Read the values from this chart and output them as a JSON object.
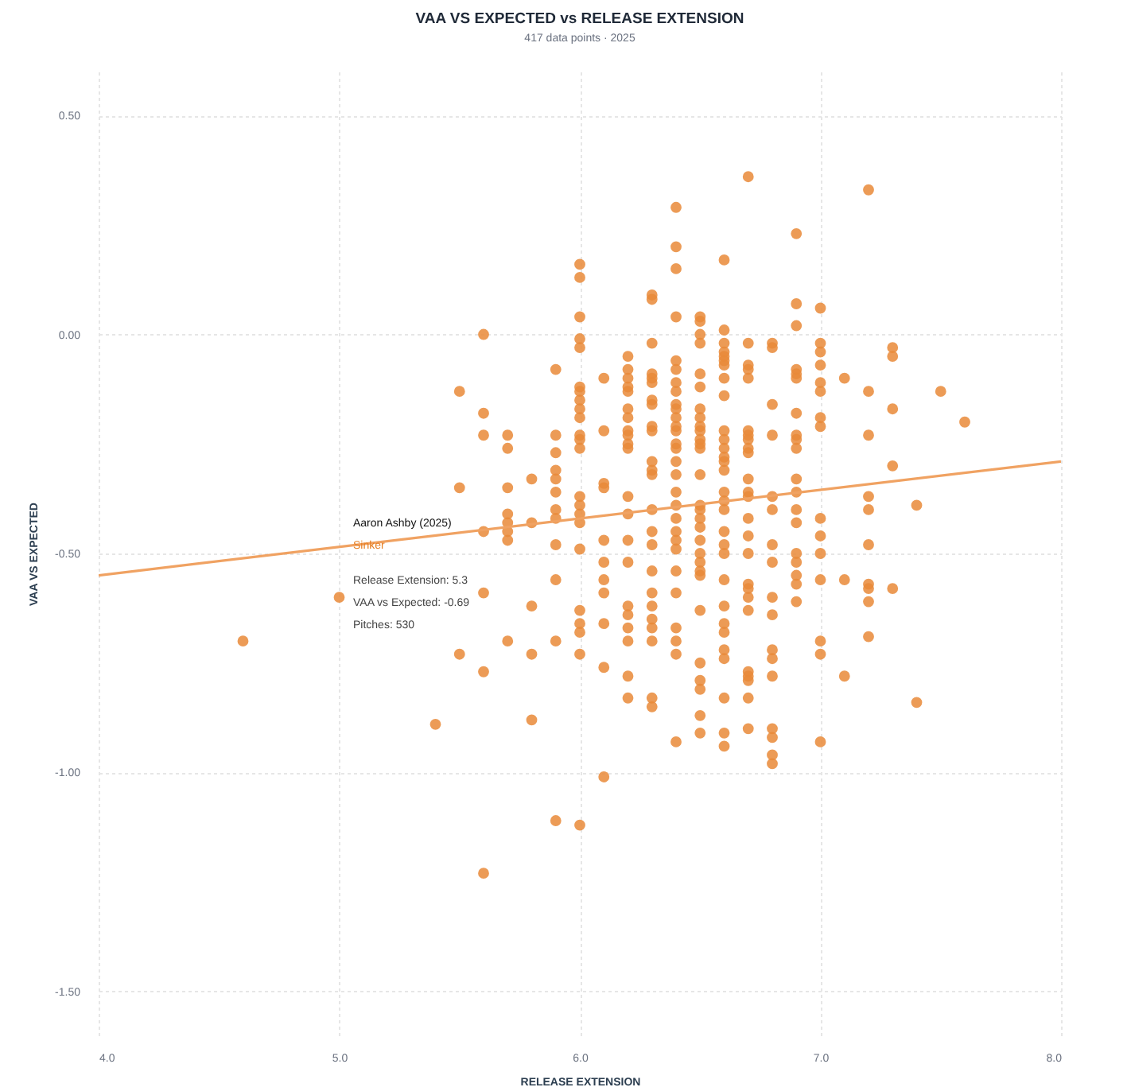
{
  "chart_data": {
    "type": "scatter",
    "title": "VAA VS EXPECTED vs RELEASE EXTENSION",
    "subtitle": "417 data points · 2025",
    "xlabel": "RELEASE EXTENSION",
    "ylabel": "VAA VS EXPECTED",
    "xlim": [
      4,
      8
    ],
    "ylim": [
      -1.6,
      0.6
    ],
    "xticks": [
      {
        "value": 4,
        "label": "4.0"
      },
      {
        "value": 5,
        "label": "5.0"
      },
      {
        "value": 6,
        "label": "6.0"
      },
      {
        "value": 7,
        "label": "7.0"
      },
      {
        "value": 8,
        "label": "8.0"
      }
    ],
    "yticks": [
      {
        "value": -1.5,
        "label": "-1.50"
      },
      {
        "value": -1,
        "label": "-1.00"
      },
      {
        "value": -0.5,
        "label": "-0.50"
      },
      {
        "value": 0,
        "label": "0.00"
      },
      {
        "value": 0.5,
        "label": "0.50"
      }
    ],
    "grid": true,
    "annotations": [
      "Aaron Ashby (2025)",
      "Sinker",
      "Release Extension: 5.3",
      "VAA vs Expected: -0.69",
      "Pitches: 530"
    ],
    "series": [
      {
        "marker": "circle",
        "color": "#e98a38",
        "x": [
          4.6,
          5.0,
          5.4,
          5.5,
          5.5,
          5.5,
          5.6,
          5.6,
          5.6,
          5.6,
          5.6,
          5.6,
          5.6,
          5.7,
          5.7,
          5.7,
          5.7,
          5.7,
          5.7,
          5.7,
          5.7,
          5.8,
          5.8,
          5.8,
          5.8,
          5.8,
          5.9,
          5.9,
          5.9,
          5.9,
          5.9,
          5.9,
          5.9,
          5.9,
          5.9,
          5.9,
          5.9,
          5.9,
          6.0,
          6.0,
          6.0,
          6.0,
          6.0,
          6.0,
          6.0,
          6.0,
          6.0,
          6.0,
          6.0,
          6.0,
          6.0,
          6.0,
          6.0,
          6.0,
          6.0,
          6.0,
          6.0,
          6.0,
          6.0,
          6.0,
          6.0,
          6.1,
          6.1,
          6.1,
          6.1,
          6.1,
          6.1,
          6.1,
          6.1,
          6.1,
          6.1,
          6.1,
          6.2,
          6.2,
          6.2,
          6.2,
          6.2,
          6.2,
          6.2,
          6.2,
          6.2,
          6.2,
          6.2,
          6.2,
          6.2,
          6.2,
          6.2,
          6.2,
          6.2,
          6.2,
          6.2,
          6.2,
          6.2,
          6.3,
          6.3,
          6.3,
          6.3,
          6.3,
          6.3,
          6.3,
          6.3,
          6.3,
          6.3,
          6.3,
          6.3,
          6.3,
          6.3,
          6.3,
          6.3,
          6.3,
          6.3,
          6.3,
          6.3,
          6.3,
          6.3,
          6.3,
          6.3,
          6.4,
          6.4,
          6.4,
          6.4,
          6.4,
          6.4,
          6.4,
          6.4,
          6.4,
          6.4,
          6.4,
          6.4,
          6.4,
          6.4,
          6.4,
          6.4,
          6.4,
          6.4,
          6.4,
          6.4,
          6.4,
          6.4,
          6.4,
          6.4,
          6.4,
          6.4,
          6.4,
          6.4,
          6.4,
          6.5,
          6.5,
          6.5,
          6.5,
          6.5,
          6.5,
          6.5,
          6.5,
          6.5,
          6.5,
          6.5,
          6.5,
          6.5,
          6.5,
          6.5,
          6.5,
          6.5,
          6.5,
          6.5,
          6.5,
          6.5,
          6.5,
          6.5,
          6.5,
          6.5,
          6.5,
          6.5,
          6.5,
          6.5,
          6.6,
          6.6,
          6.6,
          6.6,
          6.6,
          6.6,
          6.6,
          6.6,
          6.6,
          6.6,
          6.6,
          6.6,
          6.6,
          6.6,
          6.6,
          6.6,
          6.6,
          6.6,
          6.6,
          6.6,
          6.6,
          6.6,
          6.6,
          6.6,
          6.6,
          6.6,
          6.6,
          6.6,
          6.6,
          6.6,
          6.7,
          6.7,
          6.7,
          6.7,
          6.7,
          6.7,
          6.7,
          6.7,
          6.7,
          6.7,
          6.7,
          6.7,
          6.7,
          6.7,
          6.7,
          6.7,
          6.7,
          6.7,
          6.7,
          6.7,
          6.7,
          6.7,
          6.7,
          6.7,
          6.7,
          6.8,
          6.8,
          6.8,
          6.8,
          6.8,
          6.8,
          6.8,
          6.8,
          6.8,
          6.8,
          6.8,
          6.8,
          6.8,
          6.8,
          6.8,
          6.8,
          6.8,
          6.9,
          6.9,
          6.9,
          6.9,
          6.9,
          6.9,
          6.9,
          6.9,
          6.9,
          6.9,
          6.9,
          6.9,
          6.9,
          6.9,
          6.9,
          6.9,
          6.9,
          6.9,
          6.9,
          7.0,
          7.0,
          7.0,
          7.0,
          7.0,
          7.0,
          7.0,
          7.0,
          7.0,
          7.0,
          7.0,
          7.0,
          7.0,
          7.0,
          7.0,
          7.1,
          7.1,
          7.1,
          7.2,
          7.2,
          7.2,
          7.2,
          7.2,
          7.2,
          7.2,
          7.2,
          7.2,
          7.2,
          7.3,
          7.3,
          7.3,
          7.3,
          7.3,
          7.4,
          7.4,
          7.5,
          7.6
        ],
        "values": [
          -0.7,
          -0.6,
          -0.89,
          -0.13,
          -0.35,
          -0.73,
          0.0,
          -0.18,
          -0.23,
          -0.45,
          -0.59,
          -0.77,
          -1.23,
          -0.23,
          -0.26,
          -0.35,
          -0.41,
          -0.43,
          -0.45,
          -0.47,
          -0.7,
          -0.33,
          -0.43,
          -0.62,
          -0.73,
          -0.88,
          -0.08,
          -0.23,
          -0.27,
          -0.31,
          -0.33,
          -0.36,
          -0.4,
          -0.42,
          -0.48,
          -0.56,
          -0.7,
          -1.11,
          0.16,
          0.13,
          0.04,
          -0.01,
          -0.03,
          -0.12,
          -0.13,
          -0.15,
          -0.17,
          -0.19,
          -0.23,
          -0.24,
          -0.26,
          -0.37,
          -0.39,
          -0.41,
          -0.43,
          -0.49,
          -0.63,
          -0.66,
          -0.68,
          -0.73,
          -1.12,
          -0.1,
          -0.22,
          -0.34,
          -0.35,
          -0.47,
          -0.52,
          -0.56,
          -0.59,
          -0.66,
          -0.76,
          -1.01,
          -0.05,
          -0.08,
          -0.1,
          -0.12,
          -0.13,
          -0.17,
          -0.19,
          -0.22,
          -0.23,
          -0.25,
          -0.26,
          -0.37,
          -0.41,
          -0.47,
          -0.52,
          -0.62,
          -0.64,
          -0.67,
          -0.7,
          -0.78,
          -0.83,
          0.09,
          0.08,
          -0.02,
          -0.09,
          -0.1,
          -0.11,
          -0.15,
          -0.16,
          -0.21,
          -0.22,
          -0.29,
          -0.31,
          -0.32,
          -0.4,
          -0.45,
          -0.48,
          -0.54,
          -0.59,
          -0.62,
          -0.65,
          -0.67,
          -0.7,
          -0.83,
          -0.85,
          0.29,
          0.2,
          0.15,
          0.04,
          -0.06,
          -0.08,
          -0.11,
          -0.13,
          -0.16,
          -0.17,
          -0.19,
          -0.21,
          -0.22,
          -0.25,
          -0.26,
          -0.29,
          -0.32,
          -0.36,
          -0.39,
          -0.42,
          -0.45,
          -0.47,
          -0.49,
          -0.54,
          -0.59,
          -0.67,
          -0.7,
          -0.73,
          -0.93,
          0.04,
          0.03,
          0.0,
          -0.02,
          -0.09,
          -0.12,
          -0.17,
          -0.19,
          -0.21,
          -0.22,
          -0.24,
          -0.25,
          -0.26,
          -0.32,
          -0.39,
          -0.4,
          -0.42,
          -0.44,
          -0.47,
          -0.5,
          -0.52,
          -0.54,
          -0.55,
          -0.63,
          -0.75,
          -0.79,
          -0.81,
          -0.87,
          -0.91,
          0.17,
          0.01,
          -0.02,
          -0.04,
          -0.05,
          -0.06,
          -0.07,
          -0.1,
          -0.14,
          -0.22,
          -0.24,
          -0.26,
          -0.28,
          -0.29,
          -0.31,
          -0.36,
          -0.38,
          -0.4,
          -0.45,
          -0.48,
          -0.5,
          -0.56,
          -0.62,
          -0.66,
          -0.68,
          -0.72,
          -0.74,
          -0.83,
          -0.91,
          -0.94,
          0.36,
          -0.02,
          -0.07,
          -0.08,
          -0.1,
          -0.22,
          -0.23,
          -0.24,
          -0.26,
          -0.27,
          -0.33,
          -0.36,
          -0.37,
          -0.42,
          -0.46,
          -0.5,
          -0.57,
          -0.58,
          -0.6,
          -0.63,
          -0.77,
          -0.78,
          -0.79,
          -0.83,
          -0.9,
          -0.02,
          -0.03,
          -0.16,
          -0.23,
          -0.37,
          -0.4,
          -0.48,
          -0.52,
          -0.6,
          -0.64,
          -0.72,
          -0.74,
          -0.78,
          -0.9,
          -0.92,
          -0.96,
          -0.98,
          0.23,
          0.07,
          0.02,
          -0.08,
          -0.09,
          -0.1,
          -0.18,
          -0.23,
          -0.24,
          -0.26,
          -0.33,
          -0.36,
          -0.4,
          -0.43,
          -0.5,
          -0.52,
          -0.55,
          -0.57,
          -0.61,
          0.06,
          -0.02,
          -0.04,
          -0.07,
          -0.11,
          -0.13,
          -0.19,
          -0.21,
          -0.42,
          -0.46,
          -0.5,
          -0.56,
          -0.7,
          -0.73,
          -0.93,
          -0.1,
          -0.56,
          -0.78,
          0.33,
          -0.13,
          -0.23,
          -0.37,
          -0.4,
          -0.48,
          -0.57,
          -0.58,
          -0.61,
          -0.69,
          -0.03,
          -0.05,
          -0.17,
          -0.3,
          -0.58,
          -0.39,
          -0.84,
          -0.13,
          -0.2
        ]
      },
      {
        "type": "line",
        "color": "#f0a262",
        "x": [
          4,
          8
        ],
        "values": [
          -0.55,
          -0.29
        ]
      }
    ]
  }
}
